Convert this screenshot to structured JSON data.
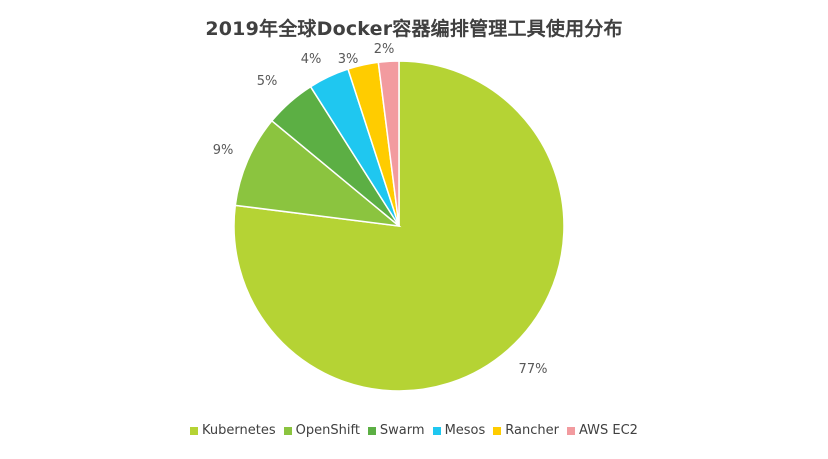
{
  "chart_data": {
    "type": "pie",
    "title": "2019年全球Docker容器编排管理工具使用分布",
    "categories": [
      "Kubernetes",
      "OpenShift",
      "Swarm",
      "Mesos",
      "Rancher",
      "AWS EC2"
    ],
    "values": [
      77,
      9,
      5,
      4,
      3,
      2
    ],
    "labels": [
      "77%",
      "9%",
      "5%",
      "4%",
      "3%",
      "2%"
    ],
    "colors": [
      "#b5d334",
      "#8bc43f",
      "#5caf44",
      "#1fc7f0",
      "#ffcc00",
      "#f29b9f"
    ],
    "legend_position": "bottom"
  }
}
